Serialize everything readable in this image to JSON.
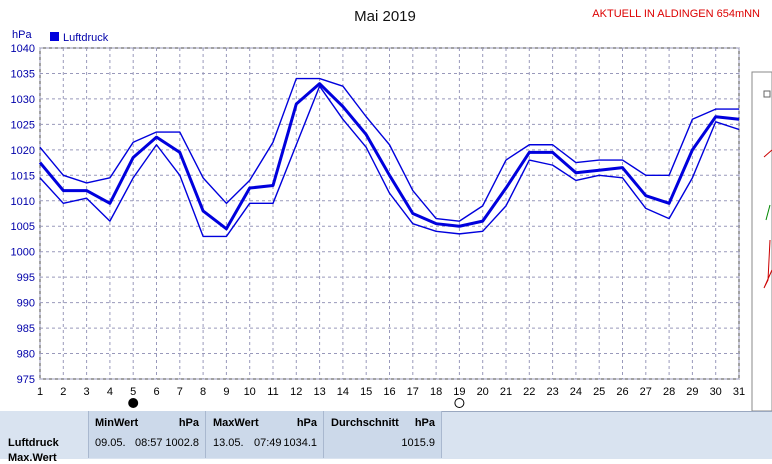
{
  "title": "Mai 2019",
  "location": "AKTUELL IN ALDINGEN 654mNN",
  "colors": {
    "series": "#0000dd",
    "grid": "#9999bb",
    "location": "#dd0000",
    "panel": "#d9e3f0"
  },
  "chart_data": {
    "type": "line",
    "ylabel": "hPa",
    "ylim": [
      975,
      1040
    ],
    "yticks": [
      975,
      980,
      985,
      990,
      995,
      1000,
      1005,
      1010,
      1015,
      1020,
      1025,
      1030,
      1035,
      1040
    ],
    "xlim": [
      1,
      31
    ],
    "x": [
      1,
      2,
      3,
      4,
      5,
      6,
      7,
      8,
      9,
      10,
      11,
      12,
      13,
      14,
      15,
      16,
      17,
      18,
      19,
      20,
      21,
      22,
      23,
      24,
      25,
      26,
      27,
      28,
      29,
      30,
      31
    ],
    "grid": true,
    "legend": "top-left",
    "series": [
      {
        "name": "Luftdruck",
        "role": "mean",
        "values": [
          1017.5,
          1012,
          1012,
          1009.5,
          1018.5,
          1022.5,
          1019.5,
          1008,
          1004.5,
          1012.5,
          1013,
          1029,
          1033,
          1028.5,
          1023,
          1015,
          1007.5,
          1005.5,
          1005,
          1006,
          1012.5,
          1019.5,
          1019.5,
          1015.5,
          1016,
          1016.5,
          1011,
          1009.5,
          1020,
          1026.5,
          1026
        ]
      },
      {
        "role": "max",
        "values": [
          1020.5,
          1015,
          1013.5,
          1014.5,
          1021.5,
          1023.5,
          1023.5,
          1014.5,
          1009.5,
          1014,
          1021.5,
          1034,
          1034,
          1032.5,
          1026.5,
          1021,
          1012,
          1006.5,
          1006,
          1009,
          1018,
          1021,
          1021,
          1017.5,
          1018,
          1018,
          1015,
          1015,
          1026,
          1028,
          1028
        ]
      },
      {
        "role": "min",
        "values": [
          1014.5,
          1009.5,
          1010.5,
          1006,
          1014.5,
          1021,
          1015,
          1003,
          1003,
          1009.5,
          1009.5,
          1021,
          1032.5,
          1026,
          1020.5,
          1011.5,
          1005.5,
          1004,
          1003.5,
          1004,
          1009,
          1018,
          1017,
          1014,
          1015,
          1014.5,
          1008.5,
          1006.5,
          1014.5,
          1025.5,
          1024
        ]
      }
    ],
    "moon_markers": [
      {
        "day": 5,
        "phase": "new"
      },
      {
        "day": 19,
        "phase": "full"
      }
    ]
  },
  "stats": {
    "row_label": "Luftdruck",
    "row_label_2": "Max.Wert",
    "min": {
      "label": "MinWert",
      "unit": "hPa",
      "date": "09.05.",
      "time": "08:57",
      "value": "1002.8"
    },
    "max": {
      "label": "MaxWert",
      "unit": "hPa",
      "date": "13.05.",
      "time": "07:49",
      "value": "1034.1"
    },
    "avg": {
      "label": "Durchschnitt",
      "unit": "hPa",
      "value": "1015.9"
    }
  }
}
